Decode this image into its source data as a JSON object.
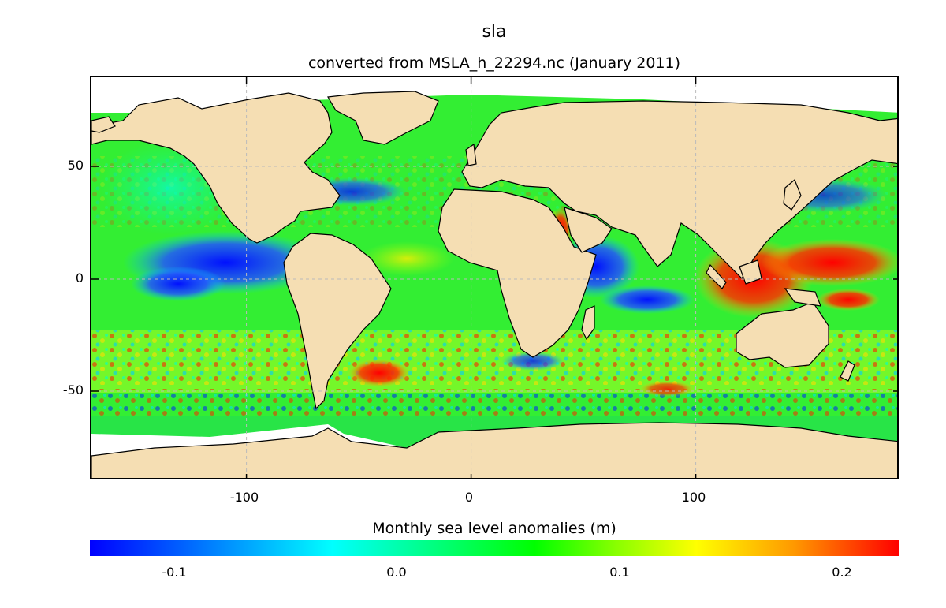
{
  "title": "sla",
  "subtitle": "converted from MSLA_h_22294.nc (January 2011)",
  "colors": {
    "land": "#f5deb3",
    "no_data": "#ffffff",
    "coastline": "#000000"
  },
  "map": {
    "projection": "equirectangular",
    "lon_range": [
      -169,
      191
    ],
    "lat_range": [
      -90,
      90
    ],
    "grid": true,
    "y_ticks": [
      "50",
      "0",
      "-50"
    ],
    "x_ticks": [
      "-100",
      "0",
      "100"
    ]
  },
  "colorbar": {
    "title": "Monthly sea level anomalies (m)",
    "tick_labels": [
      "-0.1",
      "0.0",
      "0.1",
      "0.2"
    ],
    "range": [
      -0.14,
      0.22
    ],
    "colors": [
      "#0000ff",
      "#00ffff",
      "#00ff00",
      "#ffff00",
      "#ff0000"
    ]
  }
}
